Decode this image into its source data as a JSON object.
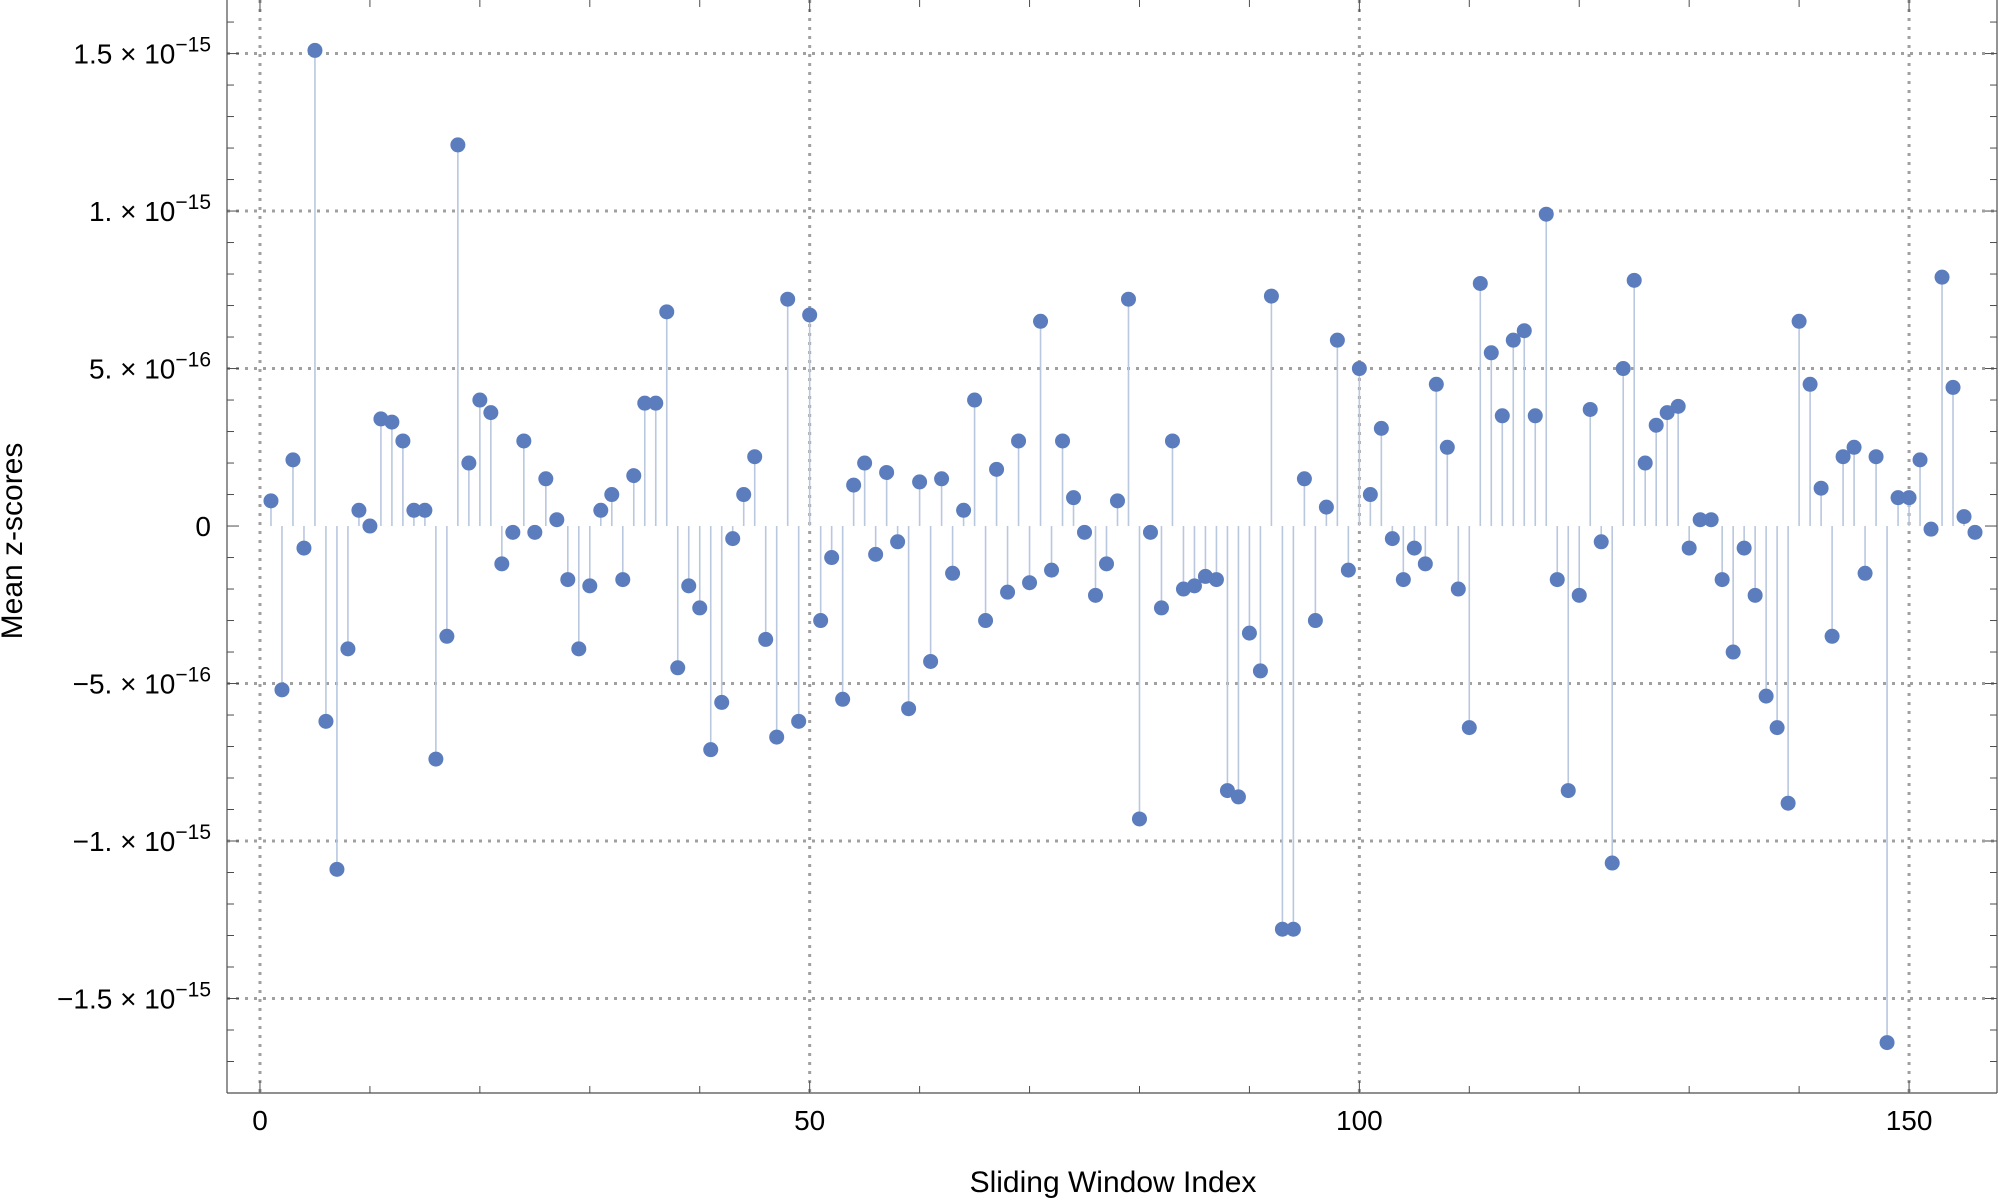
{
  "chart_data": {
    "type": "scatter",
    "style": "stem",
    "xlabel": "Sliding Window Index",
    "ylabel": "Mean z-scores",
    "xlim": [
      -3,
      158
    ],
    "ylim": [
      -1.8e-15,
      1.67e-15
    ],
    "grid": true,
    "legend": "none",
    "colors": {
      "point": "#5b7cbd",
      "stem": "#b9c7df",
      "grid": "#a0a0a0"
    },
    "x_ticks": [
      {
        "value": 0,
        "label": "0"
      },
      {
        "value": 50,
        "label": "50"
      },
      {
        "value": 100,
        "label": "100"
      },
      {
        "value": 150,
        "label": "150"
      }
    ],
    "y_ticks": [
      {
        "value": 1.5e-15,
        "mant": "1.5",
        "exp": "−15"
      },
      {
        "value": 1e-15,
        "mant": "1.",
        "exp": "−15"
      },
      {
        "value": 5e-16,
        "mant": "5.",
        "exp": "−16"
      },
      {
        "value": 0,
        "mant": "0",
        "exp": ""
      },
      {
        "value": -5e-16,
        "mant": "−5.",
        "exp": "−16"
      },
      {
        "value": -1e-15,
        "mant": "−1.",
        "exp": "−15"
      },
      {
        "value": -1.5e-15,
        "mant": "−1.5",
        "exp": "−15"
      }
    ],
    "x": [
      1,
      2,
      3,
      4,
      5,
      6,
      7,
      8,
      9,
      10,
      11,
      12,
      13,
      14,
      15,
      16,
      17,
      18,
      19,
      20,
      21,
      22,
      23,
      24,
      25,
      26,
      27,
      28,
      29,
      30,
      31,
      32,
      33,
      34,
      35,
      36,
      37,
      38,
      39,
      40,
      41,
      42,
      43,
      44,
      45,
      46,
      47,
      48,
      49,
      50,
      51,
      52,
      53,
      54,
      55,
      56,
      57,
      58,
      59,
      60,
      61,
      62,
      63,
      64,
      65,
      66,
      67,
      68,
      69,
      70,
      71,
      72,
      73,
      74,
      75,
      76,
      77,
      78,
      79,
      80,
      81,
      82,
      83,
      84,
      85,
      86,
      87,
      88,
      89,
      90,
      91,
      92,
      93,
      94,
      95,
      96,
      97,
      98,
      99,
      100,
      101,
      102,
      103,
      104,
      105,
      106,
      107,
      108,
      109,
      110,
      111,
      112,
      113,
      114,
      115,
      116,
      117,
      118,
      119,
      120,
      121,
      122,
      123,
      124,
      125,
      126,
      127,
      128,
      129,
      130,
      131,
      132,
      133,
      134,
      135,
      136,
      137,
      138,
      139,
      140,
      141,
      142,
      143,
      144,
      145,
      146,
      147,
      148,
      149,
      150,
      151,
      152,
      153,
      154,
      155,
      156
    ],
    "y": [
      8e-17,
      -5.2e-16,
      2.1e-16,
      -7e-17,
      1.51e-15,
      -6.2e-16,
      -1.09e-15,
      -3.9e-16,
      5e-17,
      0,
      3.4e-16,
      3.3e-16,
      2.7e-16,
      5e-17,
      5e-17,
      -7.4e-16,
      -3.5e-16,
      1.21e-15,
      2e-16,
      4e-16,
      3.6e-16,
      -1.2e-16,
      -2e-17,
      2.7e-16,
      -2e-17,
      1.5e-16,
      2e-17,
      -1.7e-16,
      -3.9e-16,
      -1.9e-16,
      5e-17,
      1e-16,
      -1.7e-16,
      1.6e-16,
      3.9e-16,
      3.9e-16,
      6.8e-16,
      -4.5e-16,
      -1.9e-16,
      -2.6e-16,
      -7.1e-16,
      -5.6e-16,
      -4e-17,
      1e-16,
      2.2e-16,
      -3.6e-16,
      -6.7e-16,
      7.2e-16,
      -6.2e-16,
      6.7e-16,
      -3e-16,
      -1e-16,
      -5.5e-16,
      1.3e-16,
      2e-16,
      -9e-17,
      1.7e-16,
      -5e-17,
      -5.8e-16,
      1.4e-16,
      -4.3e-16,
      1.5e-16,
      -1.5e-16,
      5e-17,
      4e-16,
      -3e-16,
      1.8e-16,
      -2.1e-16,
      2.7e-16,
      -1.8e-16,
      6.5e-16,
      -1.4e-16,
      2.7e-16,
      9e-17,
      -2e-17,
      -2.2e-16,
      -1.2e-16,
      8e-17,
      7.2e-16,
      -9.3e-16,
      -2e-17,
      -2.6e-16,
      2.7e-16,
      -2e-16,
      -1.9e-16,
      -1.6e-16,
      -1.7e-16,
      -8.4e-16,
      -8.6e-16,
      -3.4e-16,
      -4.6e-16,
      7.3e-16,
      -1.28e-15,
      -1.28e-15,
      1.5e-16,
      -3e-16,
      6e-17,
      5.9e-16,
      -1.4e-16,
      5e-16,
      1e-16,
      3.1e-16,
      -4e-17,
      -1.7e-16,
      -7e-17,
      -1.2e-16,
      4.5e-16,
      2.5e-16,
      -2e-16,
      -6.4e-16,
      7.7e-16,
      5.5e-16,
      3.5e-16,
      5.9e-16,
      6.2e-16,
      3.5e-16,
      9.9e-16,
      -1.7e-16,
      -8.4e-16,
      -2.2e-16,
      3.7e-16,
      -5e-17,
      -1.07e-15,
      5e-16,
      7.8e-16,
      2e-16,
      3.2e-16,
      3.6e-16,
      3.8e-16,
      -7e-17,
      2e-17,
      2e-17,
      -1.7e-16,
      -4e-16,
      -7e-17,
      -2.2e-16,
      -5.4e-16,
      -6.4e-16,
      -8.8e-16,
      6.5e-16,
      4.5e-16,
      1.2e-16,
      -3.5e-16,
      2.2e-16,
      2.5e-16,
      -1.5e-16,
      2.2e-16,
      -1.64e-15,
      9e-17,
      9e-17,
      2.1e-16,
      -1e-17,
      7.9e-16,
      4.4e-16,
      3e-17,
      -2e-17
    ]
  }
}
